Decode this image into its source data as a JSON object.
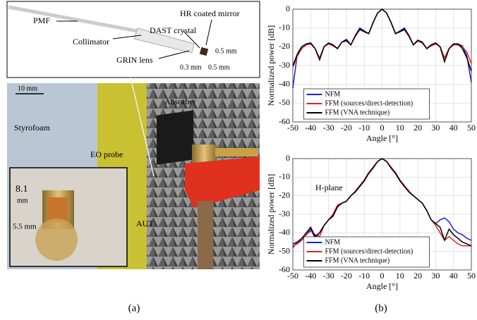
{
  "panel_a": {
    "inset_labels": {
      "pmf": "PMF",
      "collimator": "Collimator",
      "grin": "GRIN lens",
      "dast": "DAST crystal",
      "mirror": "HR coated mirror",
      "dim1": "0.5 mm",
      "dim2": "0.5 mm",
      "dim3": "0.3 mm"
    },
    "photo_labels": {
      "scale": "10 mm",
      "styrofoam": "Styrofoam",
      "eo_probe": "EO probe",
      "absorber": "Absorber",
      "aut": "AUT",
      "dim_a": "8.1",
      "dim_a_unit": "mm",
      "dim_b": "5.5 mm"
    }
  },
  "captions": [
    "(a)",
    "(b)"
  ],
  "chart_data": [
    {
      "type": "line",
      "xlabel": "Angle [°]",
      "ylabel": "Normalized power [dB]",
      "x": [
        -50,
        -47.5,
        -45,
        -42.5,
        -40,
        -37.5,
        -35,
        -32.5,
        -30,
        -27.5,
        -25,
        -22.5,
        -20,
        -17.5,
        -15,
        -12.5,
        -10,
        -7.5,
        -5,
        -2.5,
        0,
        2.5,
        5,
        7.5,
        10,
        12.5,
        15,
        17.5,
        20,
        22.5,
        25,
        27.5,
        30,
        32.5,
        35,
        37.5,
        40,
        42.5,
        45,
        47.5,
        50
      ],
      "xlim": [
        -50,
        50
      ],
      "xticks": [
        -50,
        -40,
        -30,
        -20,
        -10,
        0,
        10,
        20,
        30,
        40,
        50
      ],
      "ylim": [
        -60,
        0
      ],
      "yticks": [
        -60,
        -50,
        -40,
        -30,
        -20,
        -10,
        0
      ],
      "grid": true,
      "legend": "lower center",
      "series": [
        {
          "name": "NFM",
          "color": "#1f1fe0",
          "values": [
            -42,
            -24,
            -20,
            -18.5,
            -18,
            -21,
            -26,
            -20,
            -18,
            -19,
            -21,
            -17.5,
            -16,
            -19,
            -14,
            -10,
            -11.5,
            -13,
            -7,
            -2,
            0,
            -2,
            -7,
            -13,
            -11.5,
            -10,
            -14,
            -19,
            -16.5,
            -17.5,
            -21,
            -19,
            -18,
            -20,
            -26,
            -21,
            -18.5,
            -18.5,
            -19.5,
            -25,
            -39
          ]
        },
        {
          "name": "FFM (sources/direct-detection)",
          "color": "#e02020",
          "values": [
            -31,
            -25,
            -21,
            -19,
            -18.5,
            -21,
            -26,
            -20,
            -18.5,
            -19.5,
            -21,
            -17.5,
            -17,
            -19,
            -14.5,
            -11,
            -12,
            -13,
            -7,
            -2,
            0,
            -2,
            -7,
            -13,
            -12,
            -11,
            -14.5,
            -19,
            -17,
            -18,
            -21,
            -19.5,
            -18.5,
            -20,
            -26,
            -21,
            -19,
            -19,
            -20,
            -23,
            -29
          ]
        },
        {
          "name": "FFM (VNA technique)",
          "color": "#000000",
          "values": [
            -30,
            -24,
            -20,
            -18.5,
            -18,
            -21,
            -27,
            -20,
            -18,
            -19,
            -21,
            -17.5,
            -16.5,
            -19,
            -14,
            -10.5,
            -12,
            -13,
            -7,
            -2,
            0,
            -2,
            -7,
            -13,
            -12,
            -10.5,
            -14,
            -19,
            -16.5,
            -17.5,
            -21,
            -19,
            -18,
            -20,
            -28,
            -21,
            -18.5,
            -18.5,
            -21,
            -26,
            -33
          ]
        }
      ]
    },
    {
      "type": "line",
      "xlabel": "Angle [°]",
      "ylabel": "Normalized power [dB]",
      "annotation": "H-plane",
      "x": [
        -50,
        -47.5,
        -45,
        -42.5,
        -40,
        -37.5,
        -35,
        -32.5,
        -30,
        -27.5,
        -25,
        -22.5,
        -20,
        -17.5,
        -15,
        -12.5,
        -10,
        -7.5,
        -5,
        -2.5,
        0,
        2.5,
        5,
        7.5,
        10,
        12.5,
        15,
        17.5,
        20,
        22.5,
        25,
        27.5,
        30,
        32.5,
        35,
        37.5,
        40,
        42.5,
        45,
        47.5,
        50
      ],
      "xlim": [
        -50,
        50
      ],
      "xticks": [
        -50,
        -40,
        -30,
        -20,
        -10,
        0,
        10,
        20,
        30,
        40,
        50
      ],
      "ylim": [
        -60,
        0
      ],
      "yticks": [
        -60,
        -50,
        -40,
        -30,
        -20,
        -10,
        0
      ],
      "grid": true,
      "legend": "lower center",
      "series": [
        {
          "name": "NFM",
          "color": "#1f1fe0",
          "values": [
            -48,
            -45,
            -44,
            -41,
            -38,
            -43,
            -40,
            -36,
            -33,
            -31,
            -26,
            -24,
            -23,
            -20,
            -18,
            -15,
            -12,
            -8,
            -5,
            -1.5,
            0,
            -1.5,
            -5,
            -8,
            -12,
            -15,
            -18,
            -20,
            -22,
            -24,
            -28,
            -33,
            -35,
            -33,
            -32,
            -34,
            -38,
            -40,
            -41,
            -43,
            -44
          ]
        },
        {
          "name": "FFM (sources/direct-detection)",
          "color": "#e02020",
          "values": [
            -47,
            -46,
            -44,
            -41,
            -39,
            -41,
            -42,
            -36,
            -33,
            -30,
            -25,
            -24,
            -23,
            -20,
            -17.5,
            -14.5,
            -11.5,
            -7.5,
            -4.5,
            -1.5,
            0,
            -1.5,
            -4.5,
            -7.5,
            -11.5,
            -14.5,
            -17.5,
            -20,
            -22,
            -24,
            -28,
            -33,
            -36,
            -40,
            -44,
            -42,
            -44,
            -46,
            -47,
            -47,
            -47
          ]
        },
        {
          "name": "FFM (VNA technique)",
          "color": "#000000",
          "values": [
            -46,
            -45,
            -43,
            -40,
            -37,
            -42,
            -40,
            -36,
            -33,
            -31,
            -26,
            -24,
            -23,
            -20,
            -18,
            -15,
            -12,
            -8,
            -5,
            -1.5,
            0,
            -1.5,
            -5,
            -8,
            -12,
            -15,
            -18,
            -20,
            -22,
            -24,
            -28,
            -33,
            -35,
            -37,
            -44,
            -38,
            -41,
            -43,
            -45,
            -46,
            -47
          ]
        }
      ]
    }
  ]
}
